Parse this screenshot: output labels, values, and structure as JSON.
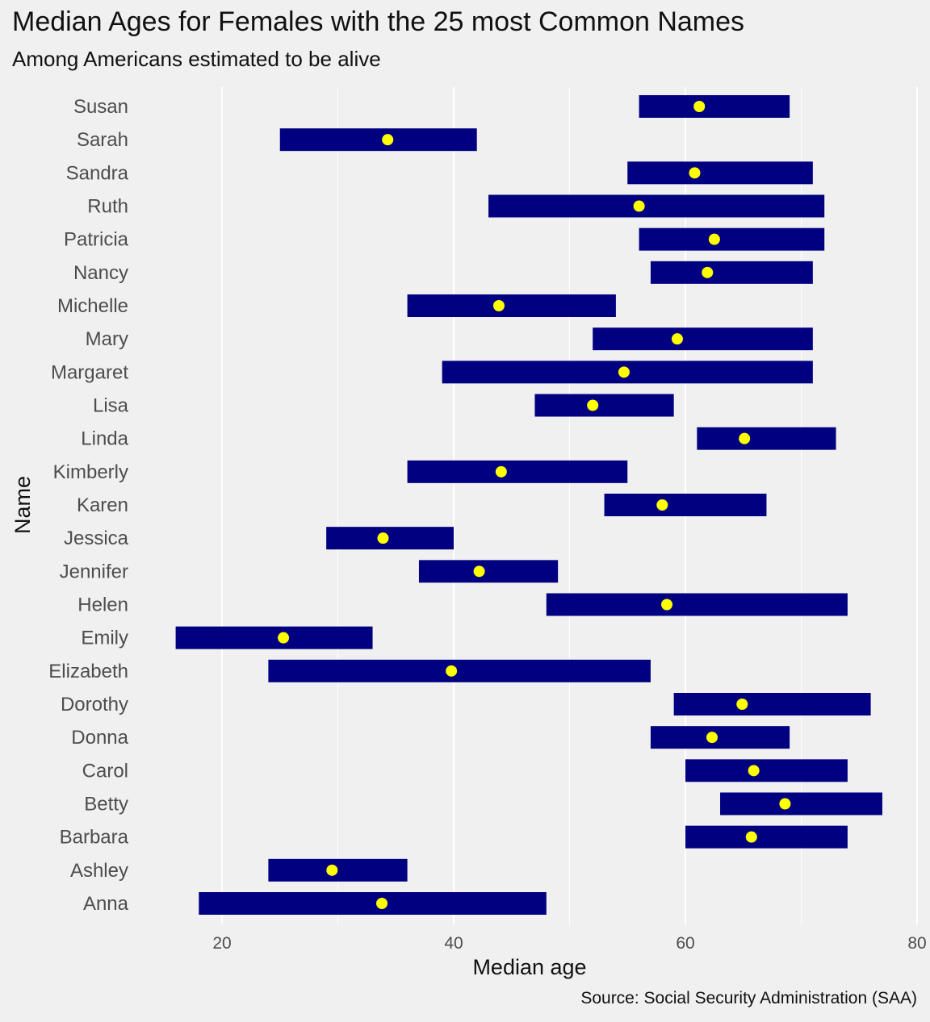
{
  "chart_data": {
    "type": "range-bar",
    "title": "Median Ages for Females with the 25 most Common Names",
    "subtitle": "Among Americans estimated to be alive",
    "xlabel": "Median age",
    "ylabel": "Name",
    "caption": "Source: Social Security Administration (SAA)",
    "xlim": [
      10,
      80
    ],
    "xticks": [
      20,
      40,
      60,
      80
    ],
    "grid": true,
    "colors": {
      "bar": "#000080",
      "point": "#ffff00",
      "background": "#f0f0f0",
      "grid": "#ffffff"
    },
    "rows": [
      {
        "name": "Susan",
        "low": 56,
        "high": 69,
        "median": 61.2
      },
      {
        "name": "Sarah",
        "low": 25,
        "high": 42,
        "median": 34.3
      },
      {
        "name": "Sandra",
        "low": 55,
        "high": 71,
        "median": 60.8
      },
      {
        "name": "Ruth",
        "low": 43,
        "high": 72,
        "median": 56.0
      },
      {
        "name": "Patricia",
        "low": 56,
        "high": 72,
        "median": 62.5
      },
      {
        "name": "Nancy",
        "low": 57,
        "high": 71,
        "median": 61.9
      },
      {
        "name": "Michelle",
        "low": 36,
        "high": 54,
        "median": 43.9
      },
      {
        "name": "Mary",
        "low": 52,
        "high": 71,
        "median": 59.3
      },
      {
        "name": "Margaret",
        "low": 39,
        "high": 71,
        "median": 54.7
      },
      {
        "name": "Lisa",
        "low": 47,
        "high": 59,
        "median": 52.0
      },
      {
        "name": "Linda",
        "low": 61,
        "high": 73,
        "median": 65.1
      },
      {
        "name": "Kimberly",
        "low": 36,
        "high": 55,
        "median": 44.1
      },
      {
        "name": "Karen",
        "low": 53,
        "high": 67,
        "median": 58.0
      },
      {
        "name": "Jessica",
        "low": 29,
        "high": 40,
        "median": 33.9
      },
      {
        "name": "Jennifer",
        "low": 37,
        "high": 49,
        "median": 42.2
      },
      {
        "name": "Helen",
        "low": 48,
        "high": 74,
        "median": 58.4
      },
      {
        "name": "Emily",
        "low": 16,
        "high": 33,
        "median": 25.3
      },
      {
        "name": "Elizabeth",
        "low": 24,
        "high": 57,
        "median": 39.8
      },
      {
        "name": "Dorothy",
        "low": 59,
        "high": 76,
        "median": 64.9
      },
      {
        "name": "Donna",
        "low": 57,
        "high": 69,
        "median": 62.3
      },
      {
        "name": "Carol",
        "low": 60,
        "high": 74,
        "median": 65.9
      },
      {
        "name": "Betty",
        "low": 63,
        "high": 77,
        "median": 68.6
      },
      {
        "name": "Barbara",
        "low": 60,
        "high": 74,
        "median": 65.7
      },
      {
        "name": "Ashley",
        "low": 24,
        "high": 36,
        "median": 29.5
      },
      {
        "name": "Anna",
        "low": 18,
        "high": 48,
        "median": 33.8
      }
    ]
  }
}
